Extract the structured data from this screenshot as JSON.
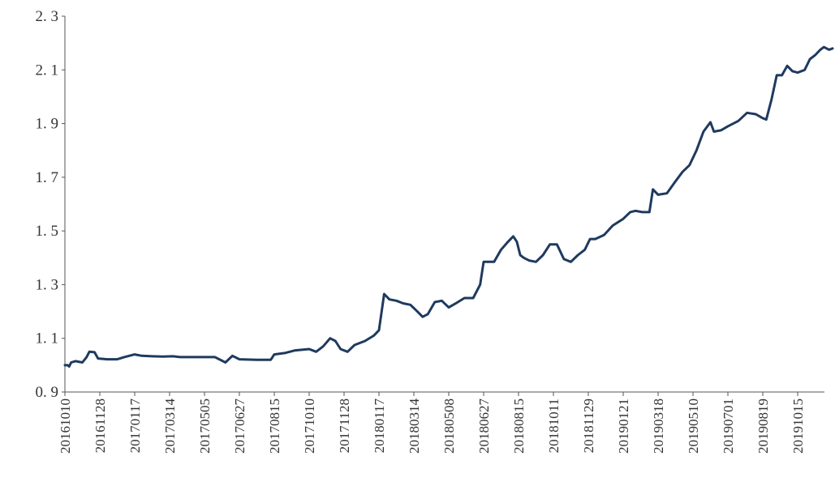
{
  "chart_data": {
    "type": "line",
    "title": "",
    "xlabel": "",
    "ylabel": "",
    "ylim": [
      0.9,
      2.3
    ],
    "y_ticks": [
      "0. 9",
      "1. 1",
      "1. 3",
      "1. 5",
      "1. 7",
      "1. 9",
      "2. 1",
      "2. 3"
    ],
    "x_tick_labels": [
      "20161010",
      "20161128",
      "20170117",
      "20170314",
      "20170505",
      "20170627",
      "20170815",
      "20171010",
      "20171128",
      "20180117",
      "20180314",
      "20180508",
      "20180627",
      "20180815",
      "20181011",
      "20181129",
      "20190121",
      "20190318",
      "20190510",
      "20190701",
      "20190819",
      "20191015"
    ],
    "line_color": "#1f3a5f",
    "grid": false,
    "series": [
      {
        "name": "",
        "points": [
          [
            0,
            1.0
          ],
          [
            0.08,
            1.0
          ],
          [
            0.12,
            0.995
          ],
          [
            0.18,
            1.01
          ],
          [
            0.3,
            1.015
          ],
          [
            0.5,
            1.01
          ],
          [
            0.62,
            1.03
          ],
          [
            0.7,
            1.05
          ],
          [
            0.85,
            1.048
          ],
          [
            0.95,
            1.025
          ],
          [
            1.2,
            1.022
          ],
          [
            1.5,
            1.022
          ],
          [
            1.7,
            1.03
          ],
          [
            2.0,
            1.04
          ],
          [
            2.2,
            1.035
          ],
          [
            2.5,
            1.033
          ],
          [
            2.8,
            1.032
          ],
          [
            3.1,
            1.033
          ],
          [
            3.3,
            1.03
          ],
          [
            3.6,
            1.03
          ],
          [
            4.0,
            1.03
          ],
          [
            4.3,
            1.03
          ],
          [
            4.6,
            1.01
          ],
          [
            4.8,
            1.035
          ],
          [
            5.0,
            1.022
          ],
          [
            5.5,
            1.02
          ],
          [
            5.9,
            1.02
          ],
          [
            6.0,
            1.04
          ],
          [
            6.3,
            1.045
          ],
          [
            6.6,
            1.055
          ],
          [
            7.0,
            1.06
          ],
          [
            7.2,
            1.05
          ],
          [
            7.4,
            1.07
          ],
          [
            7.6,
            1.1
          ],
          [
            7.75,
            1.09
          ],
          [
            7.9,
            1.06
          ],
          [
            8.1,
            1.05
          ],
          [
            8.3,
            1.075
          ],
          [
            8.6,
            1.09
          ],
          [
            8.85,
            1.11
          ],
          [
            9.0,
            1.13
          ],
          [
            9.15,
            1.265
          ],
          [
            9.3,
            1.245
          ],
          [
            9.5,
            1.24
          ],
          [
            9.7,
            1.23
          ],
          [
            9.9,
            1.225
          ],
          [
            10.1,
            1.2
          ],
          [
            10.25,
            1.18
          ],
          [
            10.4,
            1.19
          ],
          [
            10.6,
            1.235
          ],
          [
            10.8,
            1.24
          ],
          [
            11.0,
            1.215
          ],
          [
            11.2,
            1.23
          ],
          [
            11.45,
            1.25
          ],
          [
            11.7,
            1.25
          ],
          [
            11.9,
            1.3
          ],
          [
            12.0,
            1.385
          ],
          [
            12.3,
            1.385
          ],
          [
            12.5,
            1.43
          ],
          [
            12.7,
            1.46
          ],
          [
            12.85,
            1.48
          ],
          [
            12.95,
            1.46
          ],
          [
            13.05,
            1.41
          ],
          [
            13.15,
            1.4
          ],
          [
            13.3,
            1.39
          ],
          [
            13.5,
            1.385
          ],
          [
            13.7,
            1.41
          ],
          [
            13.9,
            1.45
          ],
          [
            14.1,
            1.45
          ],
          [
            14.3,
            1.395
          ],
          [
            14.5,
            1.385
          ],
          [
            14.7,
            1.41
          ],
          [
            14.9,
            1.43
          ],
          [
            15.05,
            1.47
          ],
          [
            15.2,
            1.47
          ],
          [
            15.45,
            1.485
          ],
          [
            15.7,
            1.52
          ],
          [
            16.0,
            1.545
          ],
          [
            16.2,
            1.57
          ],
          [
            16.35,
            1.575
          ],
          [
            16.55,
            1.57
          ],
          [
            16.75,
            1.57
          ],
          [
            16.85,
            1.655
          ],
          [
            17.0,
            1.635
          ],
          [
            17.25,
            1.64
          ],
          [
            17.5,
            1.685
          ],
          [
            17.7,
            1.72
          ],
          [
            17.9,
            1.745
          ],
          [
            18.1,
            1.8
          ],
          [
            18.3,
            1.87
          ],
          [
            18.5,
            1.905
          ],
          [
            18.6,
            1.87
          ],
          [
            18.8,
            1.875
          ],
          [
            19.0,
            1.89
          ],
          [
            19.3,
            1.91
          ],
          [
            19.55,
            1.94
          ],
          [
            19.8,
            1.935
          ],
          [
            20.0,
            1.92
          ],
          [
            20.1,
            1.915
          ],
          [
            20.25,
            1.99
          ],
          [
            20.4,
            2.08
          ],
          [
            20.55,
            2.08
          ],
          [
            20.7,
            2.115
          ],
          [
            20.85,
            2.095
          ],
          [
            21.0,
            2.09
          ],
          [
            21.2,
            2.1
          ],
          [
            21.35,
            2.14
          ],
          [
            21.5,
            2.155
          ],
          [
            21.65,
            2.175
          ],
          [
            21.75,
            2.185
          ],
          [
            21.9,
            2.175
          ],
          [
            22.0,
            2.18
          ]
        ]
      }
    ]
  }
}
